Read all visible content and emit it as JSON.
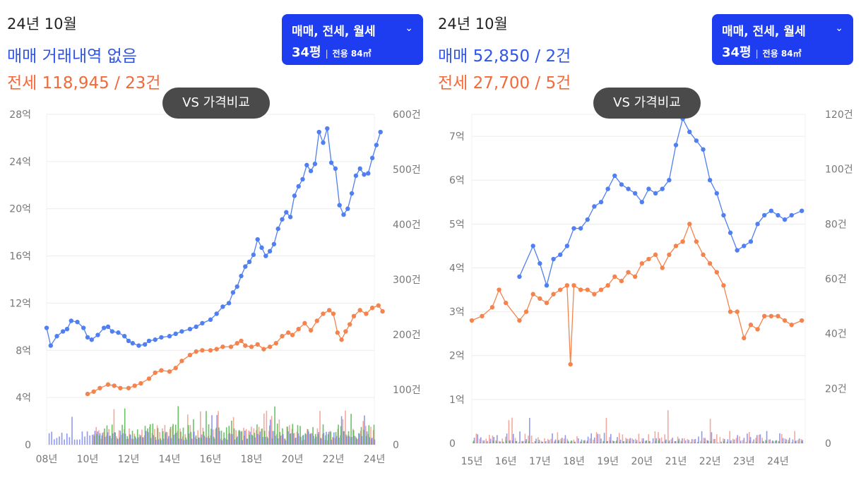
{
  "colors": {
    "sale": "#4f7ff0",
    "jeonse": "#f5834d",
    "header_sale": "#2f55e8",
    "header_jeonse": "#f2693a",
    "dropdown_bg": "#1e3df0",
    "bar_sale": "#7b86f0",
    "bar_jeonse": "#f29a8c",
    "bar_wolse": "#4fb84a",
    "grid": "#ececec"
  },
  "panels": [
    {
      "header": {
        "date": "24년 10월",
        "sale_text": "매매 거래내역 없음",
        "jeonse_text": "전세 118,945 / 23건"
      },
      "dropdown": {
        "label": "매매, 전세, 월세",
        "pyeong": "34평",
        "area": "전용 84㎡",
        "icon": "chevron-down-icon"
      },
      "compare_button": "VS 가격비교"
    },
    {
      "header": {
        "date": "24년 10월",
        "sale_text": "매매 52,850 / 2건",
        "jeonse_text": "전세 27,700 / 5건"
      },
      "dropdown": {
        "label": "매매, 전세, 월세",
        "pyeong": "34평",
        "area": "전용 84㎡",
        "icon": "chevron-down-icon"
      },
      "compare_button": "VS 가격비교"
    }
  ],
  "chart_data": [
    {
      "type": "line",
      "x_axis": {
        "ticks": [
          "08년",
          "10년",
          "12년",
          "14년",
          "16년",
          "18년",
          "20년",
          "22년",
          "24년"
        ],
        "range": [
          2008,
          2024
        ]
      },
      "y_left": {
        "ticks": [
          "0",
          "4억",
          "8억",
          "12억",
          "16억",
          "20억",
          "24억",
          "28억"
        ],
        "range": [
          0,
          28
        ]
      },
      "y_right": {
        "ticks": [
          "0",
          "100건",
          "200건",
          "300건",
          "400건",
          "500건",
          "600건"
        ],
        "range": [
          0,
          600
        ]
      },
      "grid": true,
      "series": [
        {
          "key": "sale",
          "points": [
            [
              2008.0,
              9.9
            ],
            [
              2008.2,
              8.4
            ],
            [
              2008.5,
              9.2
            ],
            [
              2008.8,
              9.6
            ],
            [
              2009.0,
              9.8
            ],
            [
              2009.2,
              10.5
            ],
            [
              2009.5,
              10.4
            ],
            [
              2009.8,
              9.9
            ],
            [
              2010.0,
              9.1
            ],
            [
              2010.2,
              8.9
            ],
            [
              2010.5,
              9.3
            ],
            [
              2010.8,
              9.9
            ],
            [
              2011.0,
              10.0
            ],
            [
              2011.2,
              9.6
            ],
            [
              2011.5,
              9.5
            ],
            [
              2011.8,
              9.2
            ],
            [
              2012.0,
              8.8
            ],
            [
              2012.2,
              8.6
            ],
            [
              2012.5,
              8.4
            ],
            [
              2012.8,
              8.5
            ],
            [
              2013.0,
              8.8
            ],
            [
              2013.3,
              8.9
            ],
            [
              2013.6,
              9.1
            ],
            [
              2014.0,
              9.2
            ],
            [
              2014.3,
              9.4
            ],
            [
              2014.6,
              9.6
            ],
            [
              2015.0,
              9.8
            ],
            [
              2015.3,
              10.0
            ],
            [
              2015.6,
              10.3
            ],
            [
              2016.0,
              10.6
            ],
            [
              2016.3,
              11.1
            ],
            [
              2016.6,
              11.7
            ],
            [
              2016.9,
              12.0
            ],
            [
              2017.1,
              12.9
            ],
            [
              2017.3,
              13.4
            ],
            [
              2017.5,
              14.3
            ],
            [
              2017.7,
              15.1
            ],
            [
              2017.9,
              15.5
            ],
            [
              2018.1,
              16.1
            ],
            [
              2018.3,
              17.4
            ],
            [
              2018.5,
              16.7
            ],
            [
              2018.7,
              16.0
            ],
            [
              2018.9,
              16.4
            ],
            [
              2019.1,
              17.0
            ],
            [
              2019.3,
              18.3
            ],
            [
              2019.5,
              19.1
            ],
            [
              2019.7,
              19.7
            ],
            [
              2019.9,
              19.3
            ],
            [
              2020.1,
              21.1
            ],
            [
              2020.3,
              21.9
            ],
            [
              2020.5,
              22.5
            ],
            [
              2020.7,
              23.7
            ],
            [
              2020.9,
              23.2
            ],
            [
              2021.1,
              23.8
            ],
            [
              2021.3,
              26.5
            ],
            [
              2021.5,
              25.6
            ],
            [
              2021.7,
              26.8
            ],
            [
              2021.9,
              23.9
            ],
            [
              2022.1,
              23.4
            ],
            [
              2022.3,
              20.3
            ],
            [
              2022.5,
              19.5
            ],
            [
              2022.7,
              20.0
            ],
            [
              2022.9,
              21.3
            ],
            [
              2023.1,
              22.8
            ],
            [
              2023.3,
              23.4
            ],
            [
              2023.5,
              22.9
            ],
            [
              2023.7,
              23.0
            ],
            [
              2023.9,
              24.3
            ],
            [
              2024.1,
              25.4
            ],
            [
              2024.3,
              26.5
            ]
          ]
        },
        {
          "key": "jeonse",
          "points": [
            [
              2010.0,
              4.3
            ],
            [
              2010.3,
              4.5
            ],
            [
              2010.6,
              4.8
            ],
            [
              2011.0,
              5.1
            ],
            [
              2011.3,
              5.0
            ],
            [
              2011.6,
              4.8
            ],
            [
              2012.0,
              4.8
            ],
            [
              2012.3,
              5.0
            ],
            [
              2012.6,
              5.2
            ],
            [
              2013.0,
              5.6
            ],
            [
              2013.3,
              6.1
            ],
            [
              2013.6,
              6.3
            ],
            [
              2014.0,
              6.2
            ],
            [
              2014.3,
              6.5
            ],
            [
              2014.6,
              7.1
            ],
            [
              2015.0,
              7.6
            ],
            [
              2015.3,
              7.9
            ],
            [
              2015.6,
              8.0
            ],
            [
              2016.0,
              8.0
            ],
            [
              2016.3,
              8.1
            ],
            [
              2016.6,
              8.3
            ],
            [
              2017.0,
              8.3
            ],
            [
              2017.3,
              8.6
            ],
            [
              2017.5,
              8.8
            ],
            [
              2017.7,
              8.4
            ],
            [
              2018.0,
              8.3
            ],
            [
              2018.3,
              8.5
            ],
            [
              2018.6,
              8.1
            ],
            [
              2018.9,
              8.3
            ],
            [
              2019.2,
              8.6
            ],
            [
              2019.5,
              9.2
            ],
            [
              2019.8,
              9.5
            ],
            [
              2020.0,
              9.3
            ],
            [
              2020.3,
              9.8
            ],
            [
              2020.6,
              10.3
            ],
            [
              2020.9,
              9.7
            ],
            [
              2021.2,
              10.5
            ],
            [
              2021.5,
              11.1
            ],
            [
              2021.8,
              11.4
            ],
            [
              2022.0,
              11.1
            ],
            [
              2022.2,
              9.5
            ],
            [
              2022.4,
              8.9
            ],
            [
              2022.6,
              9.6
            ],
            [
              2022.8,
              10.2
            ],
            [
              2023.0,
              10.9
            ],
            [
              2023.3,
              11.4
            ],
            [
              2023.6,
              11.1
            ],
            [
              2023.9,
              11.6
            ],
            [
              2024.2,
              11.8
            ],
            [
              2024.4,
              11.3
            ]
          ]
        }
      ]
    },
    {
      "type": "line",
      "x_axis": {
        "ticks": [
          "15년",
          "16년",
          "17년",
          "18년",
          "19년",
          "20년",
          "21년",
          "22년",
          "23년",
          "24년"
        ],
        "range": [
          2015,
          2024.8
        ]
      },
      "y_left": {
        "ticks": [
          "0",
          "1억",
          "2억",
          "3억",
          "4억",
          "5억",
          "6억",
          "7억"
        ],
        "range": [
          0,
          7.5
        ]
      },
      "y_right": {
        "ticks": [
          "0",
          "20건",
          "40건",
          "60건",
          "80건",
          "100건",
          "120건"
        ],
        "range": [
          0,
          120
        ]
      },
      "grid": true,
      "series": [
        {
          "key": "sale",
          "points": [
            [
              2016.4,
              3.8
            ],
            [
              2016.8,
              4.5
            ],
            [
              2017.0,
              4.1
            ],
            [
              2017.2,
              3.6
            ],
            [
              2017.4,
              4.2
            ],
            [
              2017.6,
              4.3
            ],
            [
              2017.8,
              4.5
            ],
            [
              2018.0,
              4.9
            ],
            [
              2018.2,
              4.9
            ],
            [
              2018.4,
              5.1
            ],
            [
              2018.6,
              5.4
            ],
            [
              2018.8,
              5.5
            ],
            [
              2019.0,
              5.8
            ],
            [
              2019.2,
              6.1
            ],
            [
              2019.4,
              5.9
            ],
            [
              2019.6,
              5.8
            ],
            [
              2019.8,
              5.7
            ],
            [
              2020.0,
              5.5
            ],
            [
              2020.2,
              5.8
            ],
            [
              2020.4,
              5.7
            ],
            [
              2020.6,
              5.8
            ],
            [
              2020.8,
              6.0
            ],
            [
              2021.0,
              6.8
            ],
            [
              2021.2,
              7.4
            ],
            [
              2021.4,
              7.1
            ],
            [
              2021.6,
              6.9
            ],
            [
              2021.8,
              6.7
            ],
            [
              2022.0,
              6.0
            ],
            [
              2022.2,
              5.7
            ],
            [
              2022.4,
              5.2
            ],
            [
              2022.6,
              4.8
            ],
            [
              2022.8,
              4.4
            ],
            [
              2023.0,
              4.5
            ],
            [
              2023.2,
              4.6
            ],
            [
              2023.4,
              5.0
            ],
            [
              2023.6,
              5.2
            ],
            [
              2023.8,
              5.3
            ],
            [
              2024.0,
              5.2
            ],
            [
              2024.2,
              5.1
            ],
            [
              2024.4,
              5.2
            ],
            [
              2024.7,
              5.3
            ]
          ]
        },
        {
          "key": "jeonse",
          "points": [
            [
              2015.0,
              2.8
            ],
            [
              2015.3,
              2.9
            ],
            [
              2015.6,
              3.1
            ],
            [
              2015.8,
              3.5
            ],
            [
              2016.0,
              3.2
            ],
            [
              2016.4,
              2.8
            ],
            [
              2016.6,
              3.0
            ],
            [
              2016.8,
              3.4
            ],
            [
              2017.0,
              3.3
            ],
            [
              2017.2,
              3.2
            ],
            [
              2017.4,
              3.4
            ],
            [
              2017.6,
              3.5
            ],
            [
              2017.8,
              3.6
            ],
            [
              2017.9,
              1.8
            ],
            [
              2018.0,
              3.6
            ],
            [
              2018.2,
              3.5
            ],
            [
              2018.4,
              3.5
            ],
            [
              2018.6,
              3.4
            ],
            [
              2018.8,
              3.5
            ],
            [
              2019.0,
              3.6
            ],
            [
              2019.2,
              3.8
            ],
            [
              2019.4,
              3.7
            ],
            [
              2019.6,
              3.9
            ],
            [
              2019.8,
              3.8
            ],
            [
              2020.0,
              4.1
            ],
            [
              2020.2,
              4.2
            ],
            [
              2020.4,
              4.3
            ],
            [
              2020.6,
              4.0
            ],
            [
              2020.8,
              4.3
            ],
            [
              2021.0,
              4.5
            ],
            [
              2021.2,
              4.6
            ],
            [
              2021.4,
              5.0
            ],
            [
              2021.6,
              4.6
            ],
            [
              2021.8,
              4.3
            ],
            [
              2022.0,
              4.1
            ],
            [
              2022.2,
              3.9
            ],
            [
              2022.4,
              3.6
            ],
            [
              2022.6,
              3.0
            ],
            [
              2022.8,
              3.0
            ],
            [
              2023.0,
              2.4
            ],
            [
              2023.2,
              2.7
            ],
            [
              2023.4,
              2.6
            ],
            [
              2023.6,
              2.9
            ],
            [
              2023.8,
              2.9
            ],
            [
              2024.0,
              2.9
            ],
            [
              2024.2,
              2.8
            ],
            [
              2024.4,
              2.7
            ],
            [
              2024.7,
              2.8
            ]
          ]
        }
      ]
    }
  ]
}
